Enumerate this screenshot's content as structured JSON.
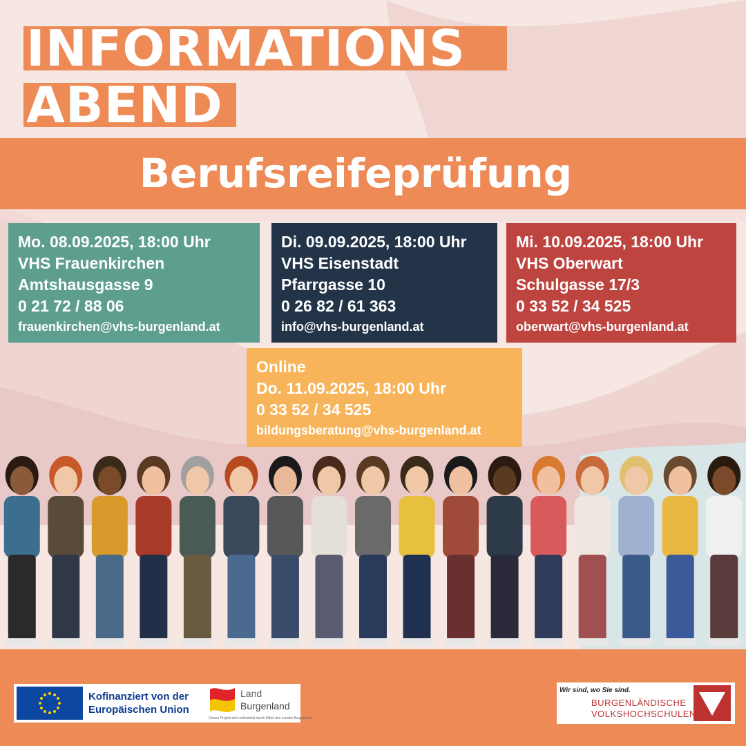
{
  "title": {
    "line1": "INFORMATIONS",
    "line2": "ABEND"
  },
  "subtitle": "Berufsreifeprüfung",
  "events": [
    {
      "date": "Mo. 08.09.2025, 18:00 Uhr",
      "location": "VHS Frauenkirchen",
      "address": "Amtshausgasse 9",
      "phone": "0 21 72 / 88 06",
      "email": "frauenkirchen@vhs-burgenland.at",
      "color": "#5e9e8f"
    },
    {
      "date": "Di. 09.09.2025, 18:00 Uhr",
      "location": "VHS Eisenstadt",
      "address": "Pfarrgasse 10",
      "phone": "0 26 82 / 61 363",
      "email": "info@vhs-burgenland.at",
      "color": "#233449"
    },
    {
      "date": "Mi. 10.09.2025, 18:00 Uhr",
      "location": "VHS Oberwart",
      "address": "Schulgasse 17/3",
      "phone": "0 33 52 / 34 525",
      "email": "oberwart@vhs-burgenland.at",
      "color": "#be4440"
    },
    {
      "mode": "Online",
      "date": "Do. 11.09.2025, 18:00 Uhr",
      "phone": "0 33 52 / 34 525",
      "email": "bildungsberatung@vhs-burgenland.at",
      "color": "#f7b45a"
    }
  ],
  "footer": {
    "eu_text_line1": "Kofinanziert von der",
    "eu_text_line2": "Europäischen Union",
    "land_line1": "Land",
    "land_line2": "Burgenland",
    "land_note": "Dieses Projekt wird unterstützt durch Mittel des Landes Burgenland",
    "vhs_slogan": "Wir sind, wo Sie sind.",
    "vhs_name1": "BURGENLÄNDISCHE",
    "vhs_name2": "VOLKSHOCHSCHULEN"
  },
  "colors": {
    "accent": "#ee8a55",
    "background": "#f6e3df"
  },
  "illustration": "crowd-of-people-illustration"
}
